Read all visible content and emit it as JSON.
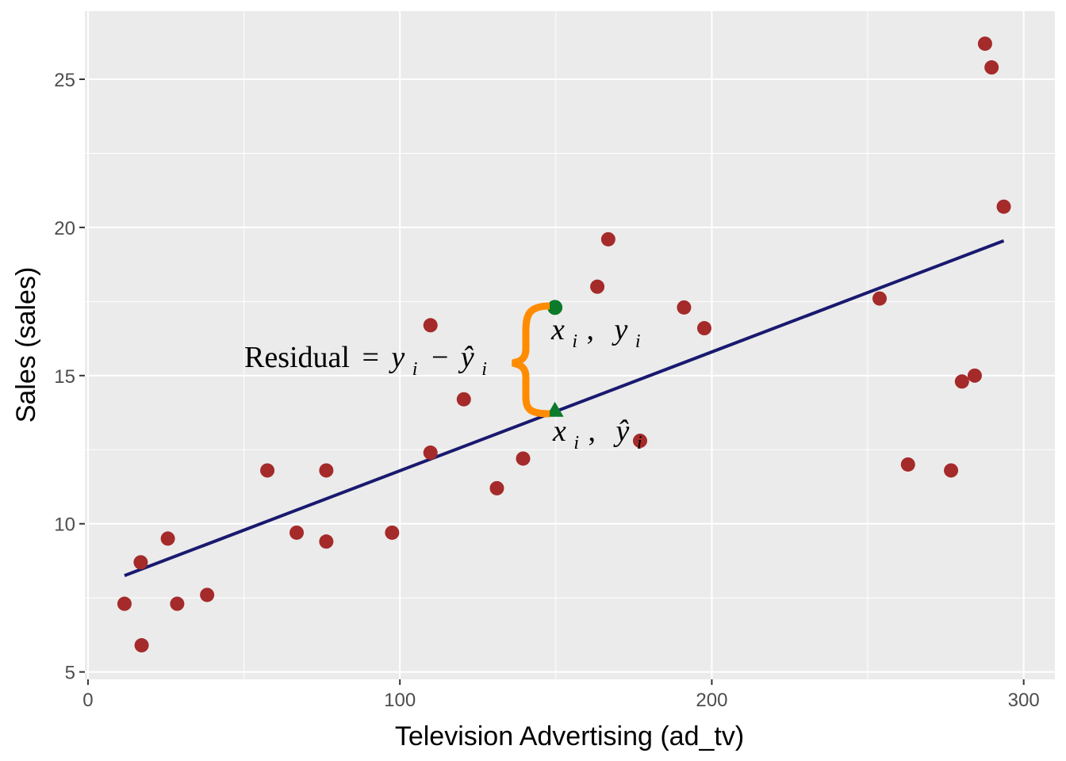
{
  "chart_data": {
    "type": "scatter",
    "xlabel": "Television Advertising (ad_tv)",
    "ylabel": "Sales (sales)",
    "xlim": [
      -1,
      310
    ],
    "ylim": [
      4.75,
      27.3
    ],
    "x_ticks": [
      0,
      100,
      200,
      300
    ],
    "x_tick_labels": [
      "0",
      "100",
      "200",
      "300"
    ],
    "y_ticks": [
      5,
      10,
      15,
      20,
      25
    ],
    "y_tick_labels": [
      "5",
      "10",
      "15",
      "20",
      "25"
    ],
    "grid": true,
    "point_color": "#a52a2a",
    "line_color": "#191970",
    "highlight_color": "#0b7a2a",
    "brace_color": "#ff8c00",
    "points": [
      {
        "x": 11.7,
        "y": 7.3
      },
      {
        "x": 16.9,
        "y": 8.7
      },
      {
        "x": 17.2,
        "y": 5.9
      },
      {
        "x": 25.6,
        "y": 9.5
      },
      {
        "x": 28.6,
        "y": 7.3
      },
      {
        "x": 38.2,
        "y": 7.6
      },
      {
        "x": 57.5,
        "y": 11.8
      },
      {
        "x": 66.9,
        "y": 9.7
      },
      {
        "x": 76.4,
        "y": 11.8
      },
      {
        "x": 76.4,
        "y": 9.4
      },
      {
        "x": 97.5,
        "y": 9.7
      },
      {
        "x": 109.8,
        "y": 16.7
      },
      {
        "x": 109.8,
        "y": 12.4
      },
      {
        "x": 120.5,
        "y": 14.2
      },
      {
        "x": 131.1,
        "y": 11.2
      },
      {
        "x": 139.5,
        "y": 12.2
      },
      {
        "x": 163.3,
        "y": 18.0
      },
      {
        "x": 166.8,
        "y": 19.6
      },
      {
        "x": 177.0,
        "y": 12.8
      },
      {
        "x": 191.1,
        "y": 17.3
      },
      {
        "x": 197.6,
        "y": 16.6
      },
      {
        "x": 253.8,
        "y": 17.6
      },
      {
        "x": 262.9,
        "y": 12.0
      },
      {
        "x": 276.7,
        "y": 11.8
      },
      {
        "x": 280.2,
        "y": 14.8
      },
      {
        "x": 284.3,
        "y": 15.0
      },
      {
        "x": 287.6,
        "y": 26.2
      },
      {
        "x": 289.7,
        "y": 25.4
      },
      {
        "x": 293.6,
        "y": 20.7
      }
    ],
    "regression_line": {
      "x": [
        11.7,
        293.6
      ],
      "y": [
        8.25,
        19.55
      ]
    },
    "highlight_observed": {
      "x": 149.7,
      "y": 17.3
    },
    "highlight_fitted": {
      "x": 149.7,
      "y": 13.85
    }
  },
  "annotations": {
    "residual_word": "Residual",
    "equals": "=",
    "minus": "−",
    "y": "y",
    "y_hat": "ŷ",
    "x": "x",
    "sub_i": "i",
    "comma": ","
  }
}
